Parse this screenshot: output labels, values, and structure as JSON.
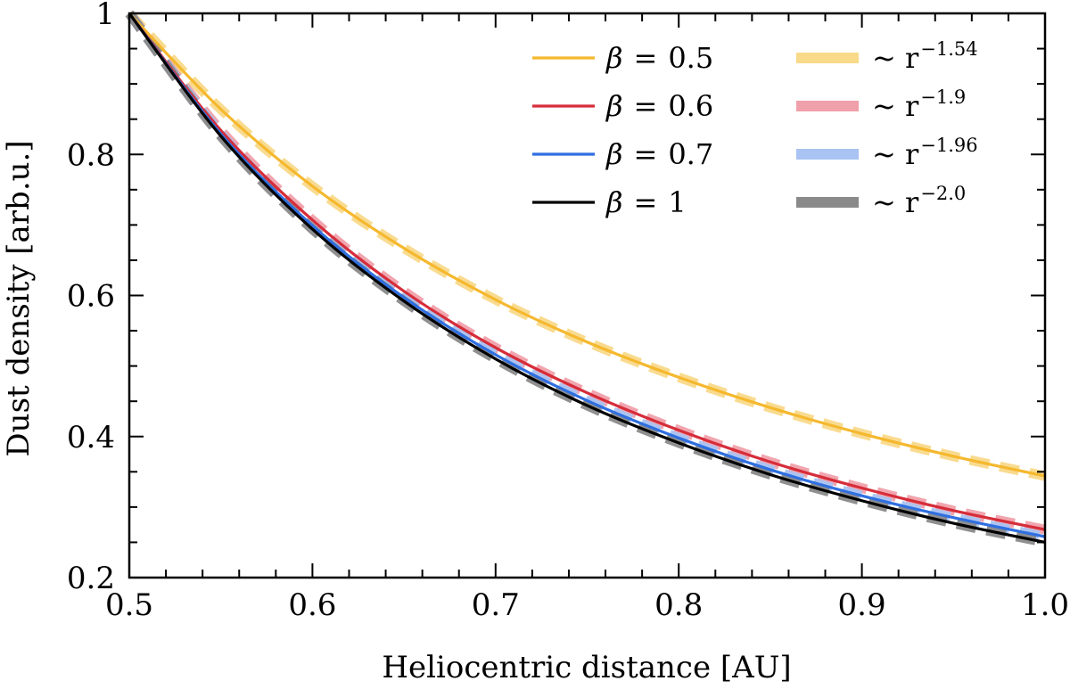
{
  "chart_data": {
    "type": "line",
    "title": "",
    "xlabel": "Heliocentric distance [AU]",
    "ylabel": "Dust density [arb.u.]",
    "xlim": [
      0.5,
      1.0
    ],
    "ylim": [
      0.2,
      1.0
    ],
    "xticks": [
      0.5,
      0.6,
      0.7,
      0.8,
      0.9,
      1.0
    ],
    "xtick_labels": [
      "0.5",
      "0.6",
      "0.7",
      "0.8",
      "0.9",
      "1.0"
    ],
    "yticks": [
      0.2,
      0.4,
      0.6,
      0.8,
      1.0
    ],
    "ytick_labels": [
      "0.2",
      "0.4",
      "0.6",
      "0.8",
      "1"
    ],
    "x": [
      0.5,
      0.55,
      0.6,
      0.65,
      0.7,
      0.75,
      0.8,
      0.85,
      0.9,
      0.95,
      1.0
    ],
    "series": [
      {
        "name": "β = 0.5",
        "symbol": "β",
        "equals": "=",
        "value": "0.5",
        "color": "#f5b82e",
        "style": "solid",
        "values": [
          1.0,
          0.864,
          0.755,
          0.667,
          0.594,
          0.534,
          0.484,
          0.441,
          0.404,
          0.372,
          0.344
        ]
      },
      {
        "name": "β = 0.6",
        "symbol": "β",
        "equals": "=",
        "value": "0.6",
        "color": "#d62d3a",
        "style": "solid",
        "values": [
          1.0,
          0.834,
          0.707,
          0.606,
          0.526,
          0.462,
          0.409,
          0.364,
          0.327,
          0.295,
          0.268
        ]
      },
      {
        "name": "β = 0.7",
        "symbol": "β",
        "equals": "=",
        "value": "0.7",
        "color": "#2f6fe0",
        "style": "solid",
        "values": [
          1.0,
          0.829,
          0.699,
          0.597,
          0.516,
          0.451,
          0.398,
          0.353,
          0.316,
          0.285,
          0.258
        ]
      },
      {
        "name": "β = 1",
        "symbol": "β",
        "equals": "=",
        "value": "1",
        "color": "#000000",
        "style": "solid",
        "values": [
          1.0,
          0.826,
          0.694,
          0.592,
          0.51,
          0.444,
          0.391,
          0.346,
          0.309,
          0.277,
          0.25
        ]
      },
      {
        "name": "~ r^-1.54",
        "symbol": "~ r",
        "exponent": "−1.54",
        "color": "#f9d98a",
        "style": "dashed",
        "values": [
          1.0,
          0.864,
          0.755,
          0.667,
          0.594,
          0.534,
          0.484,
          0.441,
          0.404,
          0.372,
          0.344
        ]
      },
      {
        "name": "~ r^-1.9",
        "symbol": "~ r",
        "exponent": "−1.9",
        "color": "#f0a0aa",
        "style": "dashed",
        "values": [
          1.0,
          0.834,
          0.707,
          0.606,
          0.526,
          0.462,
          0.409,
          0.364,
          0.327,
          0.295,
          0.268
        ]
      },
      {
        "name": "~ r^-1.96",
        "symbol": "~ r",
        "exponent": "−1.96",
        "color": "#a9c3f2",
        "style": "dashed",
        "values": [
          1.0,
          0.829,
          0.699,
          0.597,
          0.516,
          0.451,
          0.398,
          0.353,
          0.316,
          0.285,
          0.258
        ]
      },
      {
        "name": "~ r^-2.0",
        "symbol": "~ r",
        "exponent": "−2.0",
        "color": "#8a8a8a",
        "style": "dashed",
        "values": [
          1.0,
          0.826,
          0.694,
          0.592,
          0.51,
          0.444,
          0.391,
          0.346,
          0.309,
          0.277,
          0.25
        ]
      }
    ],
    "legend_position": "top-right",
    "grid": false
  }
}
